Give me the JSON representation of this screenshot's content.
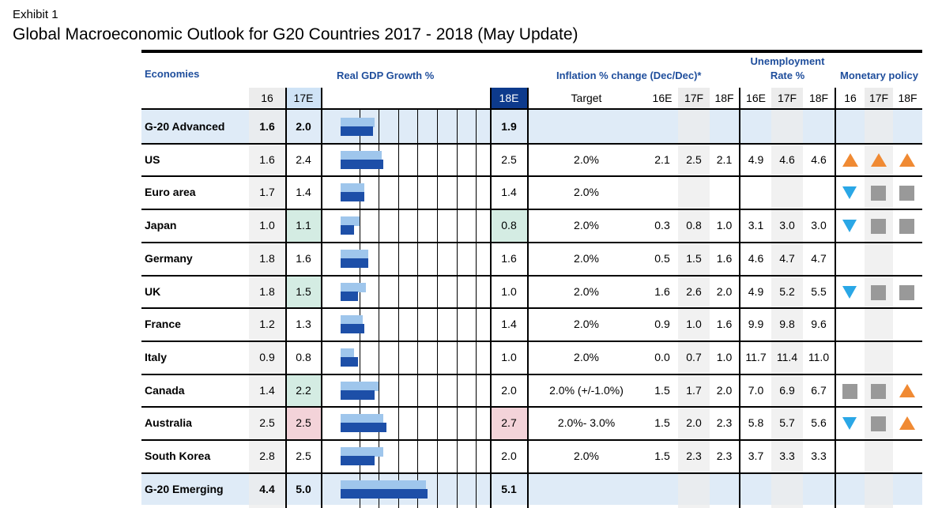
{
  "exhibit": "Exhibit 1",
  "title": "Global Macroeconomic Outlook for G20 Countries 2017 - 2018 (May Update)",
  "headers": {
    "economies": "Economies",
    "gdp": "Real GDP Growth %",
    "inflation": "Inflation % change (Dec/Dec)*",
    "unemployment_line1": "Unemployment",
    "unemployment_line2": "Rate %",
    "monetary": "Monetary policy"
  },
  "subheaders": {
    "gdp16": "16",
    "gdp17": "17E",
    "gdp18": "18E",
    "target": "Target",
    "inf16": "16E",
    "inf17": "17F",
    "inf18": "18F",
    "un16": "16E",
    "un17": "17F",
    "un18": "18F",
    "mp16": "16",
    "mp17": "17F",
    "mp18": "18F"
  },
  "colors": {
    "accent_text": "#1f4e9c",
    "bar_light": "#9fc6ec",
    "bar_dark": "#1d4fa8",
    "highlight_green": "#d4ece3",
    "highlight_pink": "#f3d3d9",
    "arrow_up": "#f08a33",
    "arrow_down": "#2aa7e6",
    "hold": "#999999"
  },
  "gdp_scale_max": 8,
  "rows": [
    {
      "name": "G-20 Advanced",
      "bold": true,
      "band": true,
      "g16": "1.6",
      "g17": "2.0",
      "g18": "1.9",
      "target": "",
      "i16": "",
      "i17": "",
      "i18": "",
      "u16": "",
      "u17": "",
      "u18": "",
      "mp": [
        "",
        "",
        ""
      ],
      "hl17": "",
      "hl18": "",
      "bar17": 2.0,
      "bar18": 1.9
    },
    {
      "name": "US",
      "g16": "1.6",
      "g17": "2.4",
      "g18": "2.5",
      "target": "2.0%",
      "i16": "2.1",
      "i17": "2.5",
      "i18": "2.1",
      "u16": "4.9",
      "u17": "4.6",
      "u18": "4.6",
      "mp": [
        "up",
        "up",
        "up"
      ],
      "hl17": "",
      "hl18": "",
      "bar17": 2.4,
      "bar18": 2.5
    },
    {
      "name": "Euro area",
      "g16": "1.7",
      "g17": "1.4",
      "g18": "1.4",
      "target": "2.0%",
      "i16": "",
      "i17": "",
      "i18": "",
      "u16": "",
      "u17": "",
      "u18": "",
      "mp": [
        "down",
        "hold",
        "hold"
      ],
      "hl17": "",
      "hl18": "",
      "bar17": 1.4,
      "bar18": 1.4
    },
    {
      "name": "Japan",
      "g16": "1.0",
      "g17": "1.1",
      "g18": "0.8",
      "target": "2.0%",
      "i16": "0.3",
      "i17": "0.8",
      "i18": "1.0",
      "u16": "3.1",
      "u17": "3.0",
      "u18": "3.0",
      "mp": [
        "down",
        "hold",
        "hold"
      ],
      "hl17": "green",
      "hl18": "green",
      "bar17": 1.1,
      "bar18": 0.8
    },
    {
      "name": "Germany",
      "g16": "1.8",
      "g17": "1.6",
      "g18": "1.6",
      "target": "2.0%",
      "i16": "0.5",
      "i17": "1.5",
      "i18": "1.6",
      "u16": "4.6",
      "u17": "4.7",
      "u18": "4.7",
      "mp": [
        "",
        "",
        ""
      ],
      "hl17": "",
      "hl18": "",
      "bar17": 1.6,
      "bar18": 1.6
    },
    {
      "name": "UK",
      "g16": "1.8",
      "g17": "1.5",
      "g18": "1.0",
      "target": "2.0%",
      "i16": "1.6",
      "i17": "2.6",
      "i18": "2.0",
      "u16": "4.9",
      "u17": "5.2",
      "u18": "5.5",
      "mp": [
        "down",
        "hold",
        "hold"
      ],
      "hl17": "green",
      "hl18": "",
      "bar17": 1.5,
      "bar18": 1.0
    },
    {
      "name": "France",
      "g16": "1.2",
      "g17": "1.3",
      "g18": "1.4",
      "target": "2.0%",
      "i16": "0.9",
      "i17": "1.0",
      "i18": "1.6",
      "u16": "9.9",
      "u17": "9.8",
      "u18": "9.6",
      "mp": [
        "",
        "",
        ""
      ],
      "hl17": "",
      "hl18": "",
      "bar17": 1.3,
      "bar18": 1.4
    },
    {
      "name": "Italy",
      "g16": "0.9",
      "g17": "0.8",
      "g18": "1.0",
      "target": "2.0%",
      "i16": "0.0",
      "i17": "0.7",
      "i18": "1.0",
      "u16": "11.7",
      "u17": "11.4",
      "u18": "11.0",
      "mp": [
        "",
        "",
        ""
      ],
      "hl17": "",
      "hl18": "",
      "bar17": 0.8,
      "bar18": 1.0
    },
    {
      "name": "Canada",
      "g16": "1.4",
      "g17": "2.2",
      "g18": "2.0",
      "target": "2.0% (+/-1.0%)",
      "i16": "1.5",
      "i17": "1.7",
      "i18": "2.0",
      "u16": "7.0",
      "u17": "6.9",
      "u18": "6.7",
      "mp": [
        "hold",
        "hold",
        "up"
      ],
      "hl17": "green",
      "hl18": "",
      "bar17": 2.2,
      "bar18": 2.0
    },
    {
      "name": "Australia",
      "g16": "2.5",
      "g17": "2.5",
      "g18": "2.7",
      "target": "2.0%- 3.0%",
      "i16": "1.5",
      "i17": "2.0",
      "i18": "2.3",
      "u16": "5.8",
      "u17": "5.7",
      "u18": "5.6",
      "mp": [
        "down",
        "hold",
        "up"
      ],
      "hl17": "pink",
      "hl18": "pink",
      "bar17": 2.5,
      "bar18": 2.7
    },
    {
      "name": "South Korea",
      "g16": "2.8",
      "g17": "2.5",
      "g18": "2.0",
      "target": "2.0%",
      "i16": "1.5",
      "i17": "2.3",
      "i18": "2.3",
      "u16": "3.7",
      "u17": "3.3",
      "u18": "3.3",
      "mp": [
        "",
        "",
        ""
      ],
      "hl17": "",
      "hl18": "",
      "bar17": 2.5,
      "bar18": 2.0
    },
    {
      "name": "G-20 Emerging",
      "bold": true,
      "band": true,
      "g16": "4.4",
      "g17": "5.0",
      "g18": "5.1",
      "target": "",
      "i16": "",
      "i17": "",
      "i18": "",
      "u16": "",
      "u17": "",
      "u18": "",
      "mp": [
        "",
        "",
        ""
      ],
      "hl17": "",
      "hl18": "",
      "bar17": 5.0,
      "bar18": 5.1
    }
  ]
}
